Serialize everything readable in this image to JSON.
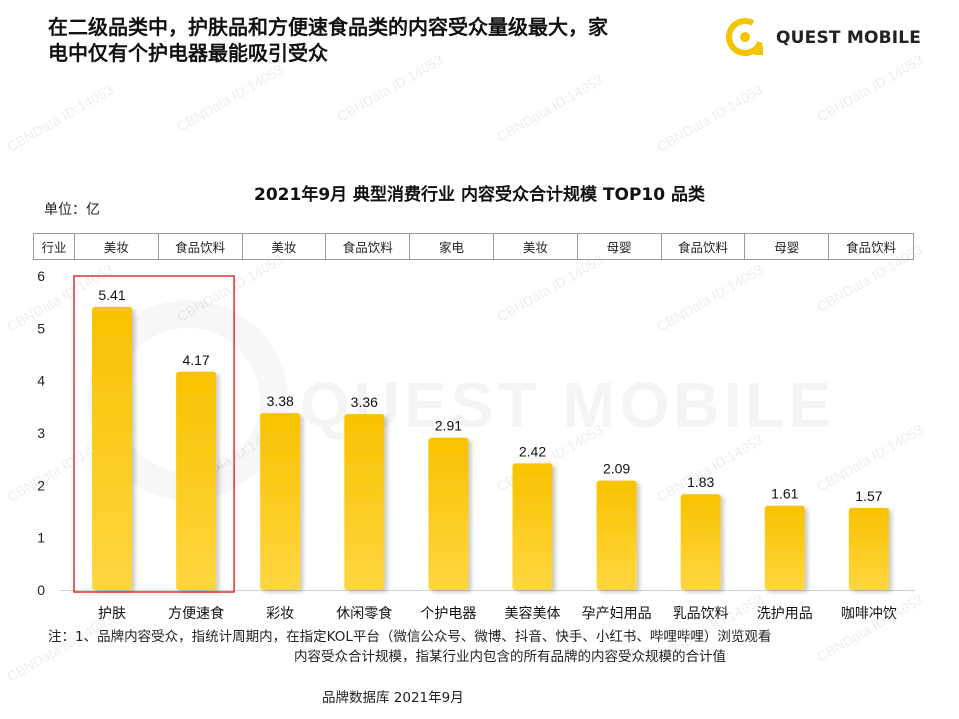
{
  "headline": {
    "line1": "在二级品类中，护肤品和方便速食品类的内容受众量级最大，家",
    "line2": "电中仅有个护电器最能吸引受众"
  },
  "logo": {
    "text": "QUEST MOBILE",
    "icon": "questmobile-logo-icon",
    "color": "#f5c400"
  },
  "watermark": {
    "text": "CBNData ID:14053",
    "big_text": "QUEST MOBILE"
  },
  "chart_data": {
    "type": "bar",
    "title": "2021年9月 典型消费行业 内容受众合计规模 TOP10 品类",
    "unit_label": "单位：亿",
    "industry_header": "行业",
    "industries": [
      "美妆",
      "食品饮料",
      "美妆",
      "食品饮料",
      "家电",
      "美妆",
      "母婴",
      "食品饮料",
      "母婴",
      "食品饮料"
    ],
    "categories": [
      "护肤",
      "方便速食",
      "彩妆",
      "休闲零食",
      "个护电器",
      "美容美体",
      "孕产妇用品",
      "乳品饮料",
      "洗护用品",
      "咖啡冲饮"
    ],
    "values": [
      5.41,
      4.17,
      3.38,
      3.36,
      2.91,
      2.42,
      2.09,
      1.83,
      1.61,
      1.57
    ],
    "value_labels": [
      "5.41",
      "4.17",
      "3.38",
      "3.36",
      "2.91",
      "2.42",
      "2.09",
      "1.83",
      "1.61",
      "1.57"
    ],
    "yticks": [
      "0",
      "1",
      "2",
      "3",
      "4",
      "5",
      "6"
    ],
    "ylim": [
      0,
      6
    ],
    "grid": false,
    "highlight": {
      "from_index": 0,
      "to_index": 1,
      "color": "#e03030"
    },
    "bar_color_top": "#f8c200",
    "bar_color_bottom": "#ffd640"
  },
  "note": {
    "line1": "注：1、品牌内容受众，指统计周期内，在指定KOL平台（微信公众号、微博、抖音、快手、小红书、哔哩哔哩）浏览观看",
    "line2": "内容受众合计规模，指某行业内包含的所有品牌的内容受众规模的合计值"
  },
  "source": "品牌数据库 2021年9月"
}
